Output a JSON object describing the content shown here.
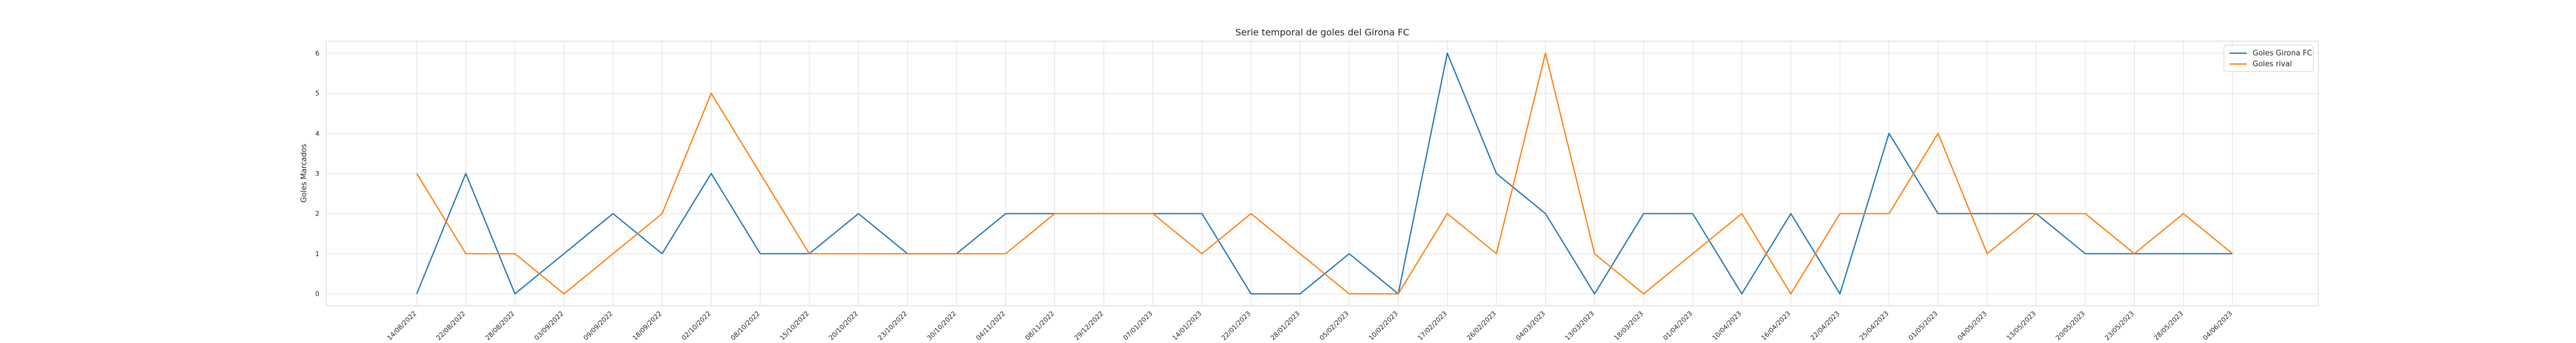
{
  "chart_data": {
    "type": "line",
    "title": "Serie temporal de goles del Girona FC",
    "xlabel": "",
    "ylabel": "Goles Marcados",
    "ylim": [
      -0.3,
      6.3
    ],
    "yticks": [
      0,
      1,
      2,
      3,
      4,
      5,
      6
    ],
    "grid": true,
    "legend_position": "top-right",
    "x": [
      "14/08/2022",
      "22/08/2022",
      "28/08/2022",
      "03/09/2022",
      "09/09/2022",
      "18/09/2022",
      "02/10/2022",
      "08/10/2022",
      "15/10/2022",
      "20/10/2022",
      "23/10/2022",
      "30/10/2022",
      "04/11/2022",
      "08/11/2022",
      "29/12/2022",
      "07/01/2023",
      "14/01/2023",
      "22/01/2023",
      "28/01/2023",
      "05/02/2023",
      "10/02/2023",
      "17/02/2023",
      "26/02/2023",
      "04/03/2023",
      "13/03/2023",
      "18/03/2023",
      "01/04/2023",
      "10/04/2023",
      "16/04/2023",
      "22/04/2023",
      "25/04/2023",
      "01/05/2023",
      "04/05/2023",
      "13/05/2023",
      "20/05/2023",
      "23/05/2023",
      "28/05/2023",
      "04/06/2023"
    ],
    "series": [
      {
        "name": "Goles Girona FC",
        "color": "#1f77b4",
        "values": [
          0,
          3,
          0,
          1,
          2,
          1,
          3,
          1,
          1,
          2,
          1,
          1,
          2,
          2,
          2,
          2,
          2,
          0,
          0,
          1,
          0,
          6,
          3,
          2,
          0,
          2,
          2,
          0,
          2,
          0,
          4,
          2,
          2,
          2,
          1,
          1,
          1,
          1
        ]
      },
      {
        "name": "Goles rival",
        "color": "#ff7f0e",
        "values": [
          3,
          1,
          1,
          0,
          1,
          2,
          5,
          3,
          1,
          1,
          1,
          1,
          1,
          2,
          2,
          2,
          1,
          2,
          1,
          0,
          0,
          2,
          1,
          6,
          1,
          0,
          1,
          2,
          0,
          2,
          2,
          4,
          1,
          2,
          2,
          1,
          2,
          1
        ]
      }
    ]
  }
}
